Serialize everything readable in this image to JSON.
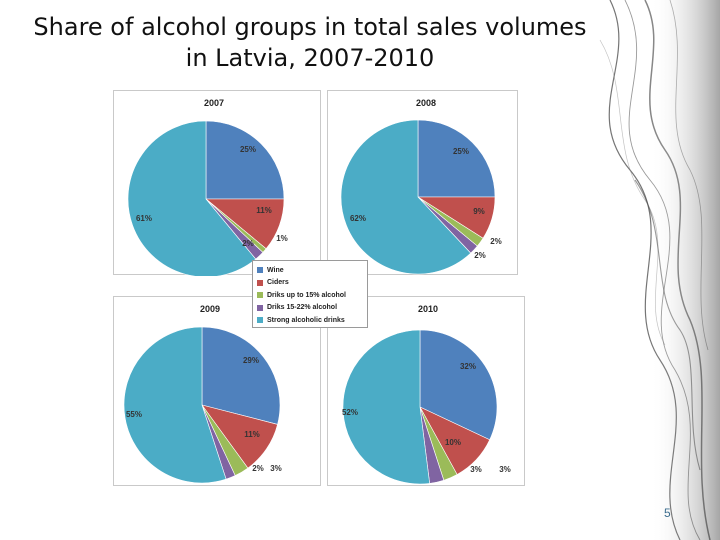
{
  "slide": {
    "title_line1": "Share of alcohol groups in total sales volumes",
    "title_line2": "in Latvia, 2007-2010",
    "page_number": "5"
  },
  "legend": [
    {
      "label": "Wine",
      "color": "#4f81bd"
    },
    {
      "label": "Ciders",
      "color": "#c0504d"
    },
    {
      "label": "Driks up to 15% alcohol",
      "color": "#9bbb59"
    },
    {
      "label": "Driks 15-22% alcohol",
      "color": "#8064a2"
    },
    {
      "label": "Strong alcoholic drinks",
      "color": "#4bacc6"
    }
  ],
  "chart_data": [
    {
      "type": "pie",
      "title": "2007",
      "categories": [
        "Wine",
        "Ciders",
        "Driks up to 15% alcohol",
        "Driks 15-22% alcohol",
        "Strong alcoholic drinks"
      ],
      "values": [
        25,
        11,
        1,
        2,
        61
      ],
      "labels": [
        "25%",
        "11%",
        "1%",
        "2%",
        "61%"
      ]
    },
    {
      "type": "pie",
      "title": "2008",
      "categories": [
        "Wine",
        "Ciders",
        "Driks up to 15% alcohol",
        "Driks 15-22% alcohol",
        "Strong alcoholic drinks"
      ],
      "values": [
        25,
        9,
        2,
        2,
        62
      ],
      "labels": [
        "25%",
        "9%",
        "2%",
        "2%",
        "62%"
      ]
    },
    {
      "type": "pie",
      "title": "2009",
      "categories": [
        "Wine",
        "Ciders",
        "Driks up to 15% alcohol",
        "Driks 15-22% alcohol",
        "Strong alcoholic drinks"
      ],
      "values": [
        29,
        11,
        3,
        2,
        55
      ],
      "labels": [
        "29%",
        "11%",
        "3%",
        "2%",
        "55%"
      ]
    },
    {
      "type": "pie",
      "title": "2010",
      "categories": [
        "Wine",
        "Ciders",
        "Driks up to 15% alcohol",
        "Driks 15-22% alcohol",
        "Strong alcoholic drinks"
      ],
      "values": [
        32,
        10,
        3,
        3,
        52
      ],
      "labels": [
        "32%",
        "10%",
        "3%",
        "3%",
        "52%"
      ]
    }
  ]
}
